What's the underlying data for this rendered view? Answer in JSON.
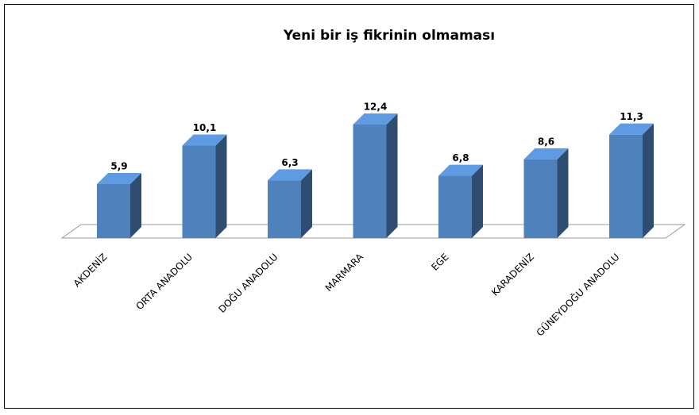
{
  "chart_data": {
    "type": "bar3d",
    "title": "Yeni bir iş fikrinin olmaması",
    "categories": [
      "AKDENİZ",
      "ORTA ANADOLU",
      "DOĞU ANADOLU",
      "MARMARA",
      "EGE",
      "KARADENİZ",
      "GÜNEYDOĞU ANADOLU"
    ],
    "values": [
      5.9,
      10.1,
      6.3,
      12.4,
      6.8,
      8.6,
      11.3
    ],
    "value_labels": [
      "5,9",
      "10,1",
      "6,3",
      "12,4",
      "6,8",
      "8,6",
      "11,3"
    ],
    "color": "#4f81bd"
  }
}
